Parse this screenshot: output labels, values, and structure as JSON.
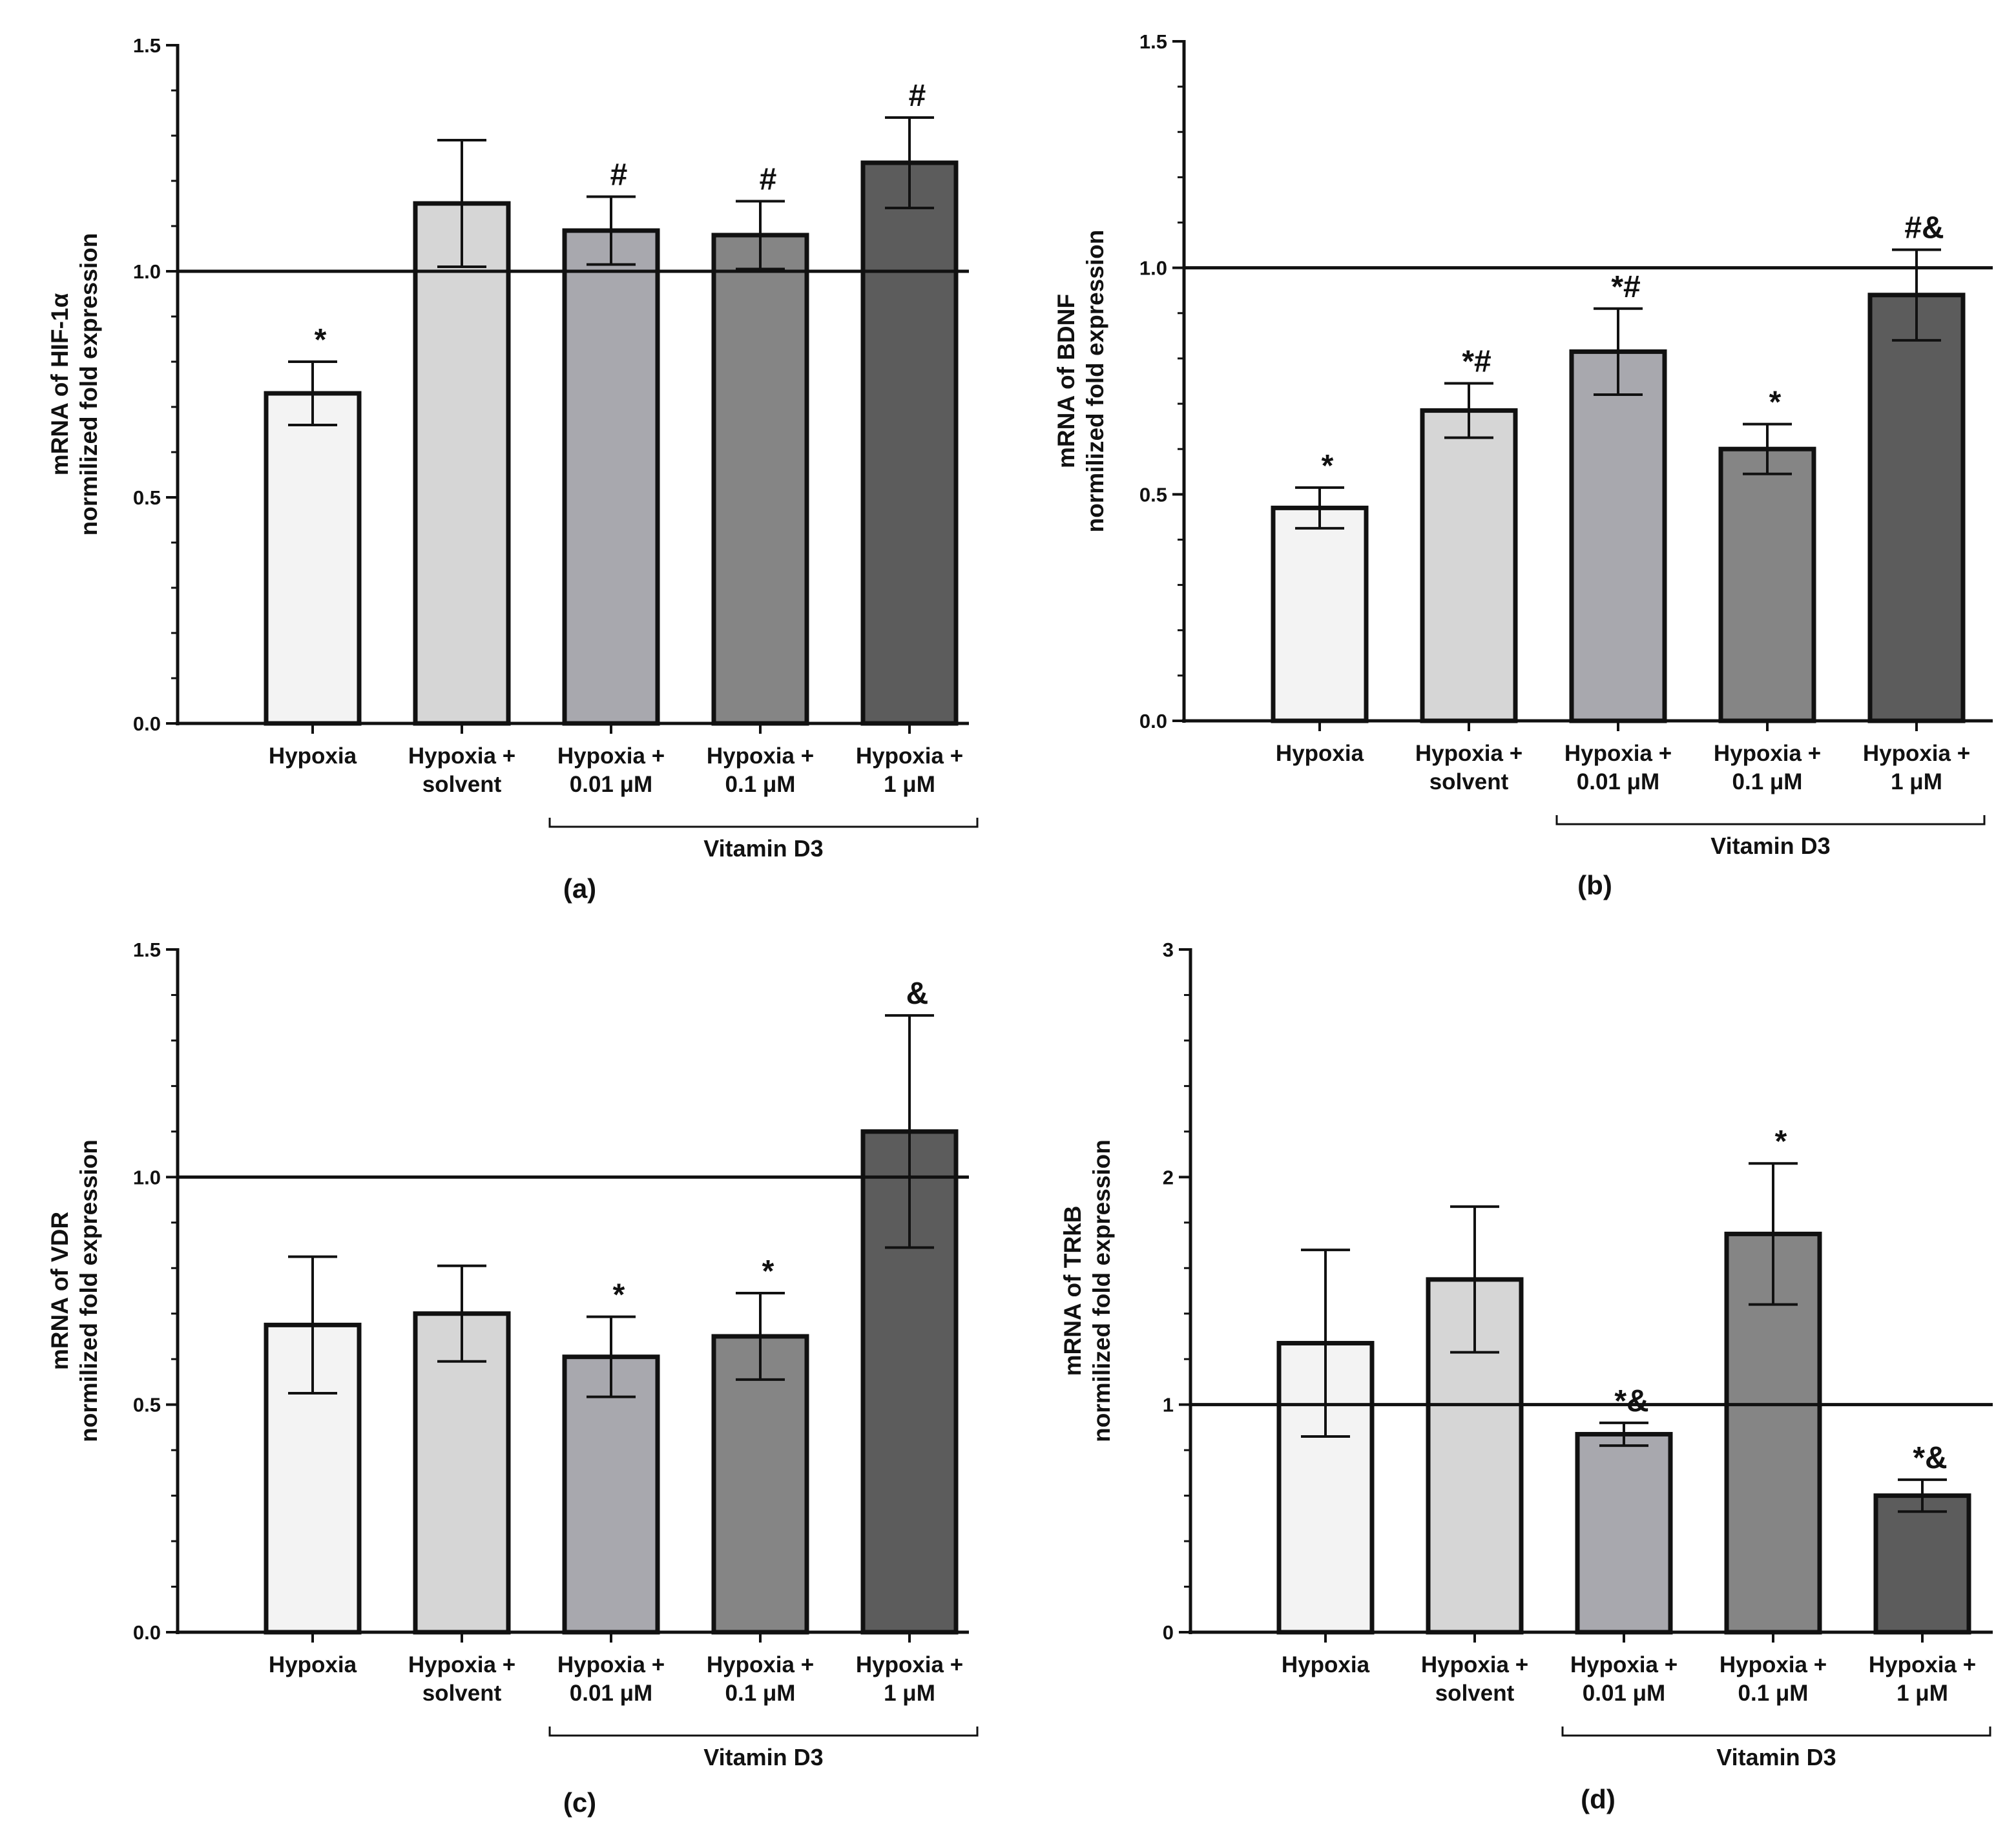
{
  "colors": {
    "axis": "#111111",
    "bar_fills": [
      "#f3f3f3",
      "#d6d6d6",
      "#a8a8ae",
      "#858585",
      "#5c5c5c"
    ]
  },
  "chart_data": [
    {
      "type": "bar",
      "panel_label": "(a)",
      "ylabel_line1": "mRNA of HIF-1α",
      "ylabel_line2": "normilized fold expression",
      "ylim": [
        0,
        1.5
      ],
      "yticks": [
        "0.0",
        "0.5",
        "1.0",
        "1.5"
      ],
      "reference_line": 1.0,
      "categories": [
        [
          "Hypoxia"
        ],
        [
          "Hypoxia +",
          "solvent"
        ],
        [
          "Hypoxia +",
          "0.01 μM"
        ],
        [
          "Hypoxia +",
          "0.1 μM"
        ],
        [
          "Hypoxia +",
          "1 μM"
        ]
      ],
      "values": [
        0.73,
        1.15,
        1.09,
        1.08,
        1.24
      ],
      "errors": [
        0.07,
        0.14,
        0.075,
        0.075,
        0.1
      ],
      "annotations": [
        "*",
        "",
        "#",
        "#",
        "#"
      ],
      "group_label": "Vitamin D3"
    },
    {
      "type": "bar",
      "panel_label": "(b)",
      "ylabel_line1": "mRNA of BDNF",
      "ylabel_line2": "normilized fold expression",
      "ylim": [
        0,
        1.5
      ],
      "yticks": [
        "0.0",
        "0.5",
        "1.0",
        "1.5"
      ],
      "reference_line": 1.0,
      "categories": [
        [
          "Hypoxia"
        ],
        [
          "Hypoxia +",
          "solvent"
        ],
        [
          "Hypoxia +",
          "0.01 μM"
        ],
        [
          "Hypoxia +",
          "0.1 μM"
        ],
        [
          "Hypoxia +",
          "1 μM"
        ]
      ],
      "values": [
        0.47,
        0.685,
        0.815,
        0.6,
        0.94
      ],
      "errors": [
        0.045,
        0.06,
        0.095,
        0.055,
        0.1
      ],
      "annotations": [
        "*",
        "*#",
        "*#",
        "*",
        "#&"
      ],
      "group_label": "Vitamin D3"
    },
    {
      "type": "bar",
      "panel_label": "(c)",
      "ylabel_line1": "mRNA of VDR",
      "ylabel_line2": "normilized fold expression",
      "ylim": [
        0,
        1.5
      ],
      "yticks": [
        "0.0",
        "0.5",
        "1.0",
        "1.5"
      ],
      "reference_line": 1.0,
      "categories": [
        [
          "Hypoxia"
        ],
        [
          "Hypoxia +",
          "solvent"
        ],
        [
          "Hypoxia +",
          "0.01 μM"
        ],
        [
          "Hypoxia +",
          "0.1 μM"
        ],
        [
          "Hypoxia +",
          "1 μM"
        ]
      ],
      "values": [
        0.675,
        0.7,
        0.605,
        0.65,
        1.1
      ],
      "errors": [
        0.15,
        0.105,
        0.088,
        0.095,
        0.255
      ],
      "annotations": [
        "",
        "",
        "*",
        "*",
        "&"
      ],
      "group_label": "Vitamin D3"
    },
    {
      "type": "bar",
      "panel_label": "(d)",
      "ylabel_line1": "mRNA of TRkB",
      "ylabel_line2": "normilized fold expression",
      "ylim": [
        0,
        3
      ],
      "yticks": [
        "0",
        "1",
        "2",
        "3"
      ],
      "reference_line": 1.0,
      "categories": [
        [
          "Hypoxia"
        ],
        [
          "Hypoxia +",
          "solvent"
        ],
        [
          "Hypoxia +",
          "0.01 μM"
        ],
        [
          "Hypoxia +",
          "0.1 μM"
        ],
        [
          "Hypoxia +",
          "1 μM"
        ]
      ],
      "values": [
        1.27,
        1.55,
        0.87,
        1.75,
        0.6
      ],
      "errors": [
        0.41,
        0.32,
        0.05,
        0.31,
        0.07
      ],
      "annotations": [
        "",
        "",
        "*&",
        "*",
        "*&"
      ],
      "group_label": "Vitamin D3"
    }
  ]
}
